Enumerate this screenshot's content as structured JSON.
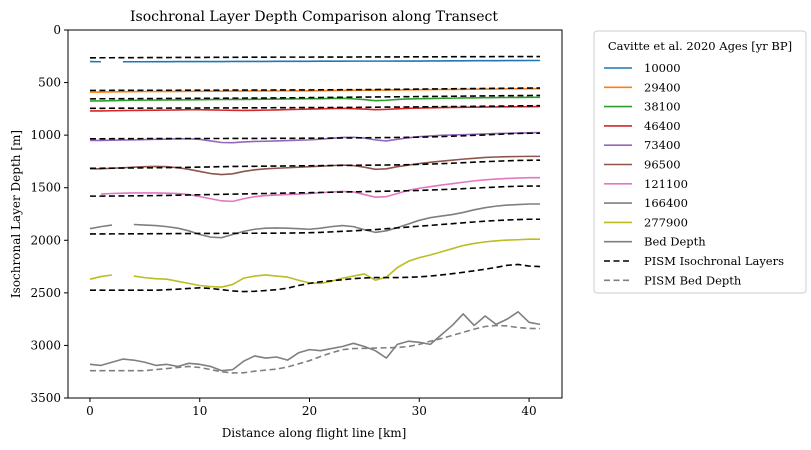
{
  "chart_data": {
    "type": "line",
    "title": "Isochronal Layer Depth Comparison along Transect",
    "xlabel": "Distance along flight line [km]",
    "ylabel": "Isochronal Layer Depth [m]",
    "xlim": [
      -2,
      43
    ],
    "ylim": [
      3500,
      0
    ],
    "y_inverted": true,
    "xticks": [
      0,
      10,
      20,
      30,
      40
    ],
    "yticks": [
      0,
      500,
      1000,
      1500,
      2000,
      2500,
      3000,
      3500
    ],
    "legend_title": "Cavitte et al. 2020 Ages [yr BP]",
    "legend_position": "outside-right",
    "x": [
      0,
      1,
      2,
      3,
      4,
      5,
      6,
      7,
      8,
      9,
      10,
      11,
      12,
      13,
      14,
      15,
      16,
      17,
      18,
      19,
      20,
      21,
      22,
      23,
      24,
      25,
      26,
      27,
      28,
      29,
      30,
      31,
      32,
      33,
      34,
      35,
      36,
      37,
      38,
      39,
      40,
      41
    ],
    "series": [
      {
        "name": "10000",
        "color": "#1f77b4",
        "style": "solid",
        "in_legend": true,
        "values": [
          300,
          302,
          null,
          302,
          302,
          302,
          301,
          301,
          300,
          300,
          300,
          300,
          300,
          299,
          299,
          299,
          299,
          298,
          298,
          298,
          298,
          297,
          297,
          297,
          296,
          296,
          296,
          296,
          295,
          295,
          295,
          294,
          294,
          293,
          293,
          292,
          292,
          292,
          291,
          291,
          290,
          290
        ]
      },
      {
        "name": "29400",
        "color": "#ff7f0e",
        "style": "solid",
        "in_legend": true,
        "values": [
          590,
          590,
          588,
          587,
          586,
          585,
          585,
          584,
          584,
          583,
          583,
          582,
          582,
          581,
          581,
          580,
          580,
          579,
          579,
          578,
          578,
          577,
          576,
          575,
          574,
          573,
          572,
          571,
          570,
          569,
          568,
          567,
          566,
          565,
          564,
          563,
          562,
          561,
          560,
          559,
          558,
          558
        ]
      },
      {
        "name": "38100",
        "color": "#2ca02c",
        "style": "solid",
        "in_legend": true,
        "values": [
          675,
          675,
          672,
          670,
          668,
          667,
          666,
          665,
          665,
          664,
          663,
          662,
          661,
          660,
          660,
          659,
          658,
          657,
          656,
          655,
          654,
          653,
          651,
          650,
          655,
          662,
          672,
          668,
          660,
          656,
          654,
          652,
          650,
          648,
          646,
          645,
          644,
          643,
          642,
          641,
          640,
          640
        ]
      },
      {
        "name": "46400",
        "color": "#d62728",
        "style": "solid",
        "in_legend": true,
        "values": [
          770,
          770,
          768,
          766,
          765,
          764,
          763,
          762,
          760,
          758,
          758,
          760,
          762,
          764,
          765,
          764,
          762,
          760,
          757,
          755,
          752,
          750,
          747,
          745,
          748,
          752,
          758,
          755,
          750,
          745,
          742,
          740,
          738,
          736,
          735,
          734,
          733,
          732,
          731,
          730,
          729,
          728
        ]
      },
      {
        "name": "73400",
        "color": "#9467bd",
        "style": "solid",
        "in_legend": true,
        "values": [
          1050,
          1050,
          1048,
          1046,
          1045,
          1042,
          1040,
          1038,
          1035,
          1035,
          1040,
          1055,
          1070,
          1072,
          1065,
          1060,
          1058,
          1055,
          1052,
          1048,
          1045,
          1038,
          1030,
          1022,
          1020,
          1028,
          1045,
          1055,
          1040,
          1025,
          1015,
          1008,
          1002,
          998,
          995,
          992,
          988,
          985,
          982,
          980,
          978,
          975
        ]
      },
      {
        "name": "96500",
        "color": "#8c564b",
        "style": "solid",
        "in_legend": true,
        "values": [
          1320,
          1320,
          1315,
          1310,
          1305,
          1300,
          1298,
          1300,
          1310,
          1325,
          1345,
          1365,
          1375,
          1368,
          1345,
          1330,
          1320,
          1315,
          1310,
          1305,
          1300,
          1295,
          1290,
          1285,
          1290,
          1305,
          1325,
          1320,
          1300,
          1285,
          1270,
          1258,
          1248,
          1238,
          1228,
          1220,
          1212,
          1208,
          1205,
          1203,
          1202,
          1202
        ]
      },
      {
        "name": "121100",
        "color": "#e377c2",
        "style": "solid",
        "in_legend": true,
        "values": [
          null,
          1560,
          1555,
          1552,
          1550,
          1550,
          1550,
          1552,
          1555,
          1565,
          1585,
          1605,
          1625,
          1630,
          1605,
          1585,
          1575,
          1570,
          1565,
          1560,
          1555,
          1548,
          1540,
          1535,
          1540,
          1565,
          1590,
          1585,
          1555,
          1525,
          1505,
          1490,
          1475,
          1462,
          1448,
          1435,
          1425,
          1418,
          1412,
          1408,
          1405,
          1405
        ]
      },
      {
        "name": "166400",
        "color": "#7f7f7f",
        "style": "solid",
        "in_legend": true,
        "values": [
          1890,
          1870,
          1855,
          null,
          1850,
          1855,
          1860,
          1870,
          1885,
          1910,
          1945,
          1970,
          1975,
          1945,
          1915,
          1895,
          1885,
          1883,
          1885,
          1890,
          1895,
          1885,
          1870,
          1860,
          1870,
          1900,
          1925,
          1910,
          1880,
          1845,
          1810,
          1785,
          1770,
          1755,
          1735,
          1710,
          1690,
          1675,
          1665,
          1660,
          1655,
          1655
        ]
      },
      {
        "name": "277900",
        "color": "#bcbd22",
        "style": "solid",
        "in_legend": true,
        "values": [
          2370,
          2345,
          2330,
          null,
          2340,
          2355,
          2365,
          2370,
          2390,
          2410,
          2430,
          2440,
          2445,
          2420,
          2360,
          2340,
          2330,
          2340,
          2350,
          2380,
          2405,
          2410,
          2390,
          2360,
          2340,
          2320,
          2380,
          2350,
          2260,
          2200,
          2165,
          2140,
          2110,
          2080,
          2050,
          2030,
          2015,
          2005,
          1998,
          1995,
          1990,
          1990
        ]
      },
      {
        "name": "Bed Depth",
        "color": "#7f7f7f",
        "style": "solid",
        "in_legend": true,
        "values": [
          3180,
          3190,
          3160,
          3130,
          3140,
          3160,
          3190,
          3180,
          3200,
          3170,
          3180,
          3200,
          3240,
          3230,
          3150,
          3100,
          3120,
          3110,
          3140,
          3070,
          3040,
          3050,
          3030,
          3010,
          2980,
          3010,
          3050,
          3120,
          2990,
          2960,
          2970,
          2990,
          2900,
          2810,
          2700,
          2810,
          2720,
          2800,
          2750,
          2680,
          2780,
          2800
        ]
      },
      {
        "name": "PISM Isochronal Layers",
        "color": "#000000",
        "style": "dashed",
        "in_legend": true,
        "values": [
          265,
          264,
          264,
          263,
          263,
          262,
          262,
          262,
          261,
          261,
          261,
          260,
          260,
          260,
          259,
          259,
          259,
          258,
          258,
          258,
          258,
          257,
          257,
          257,
          257,
          256,
          256,
          256,
          256,
          255,
          255,
          255,
          255,
          254,
          254,
          254,
          254,
          253,
          253,
          253,
          253,
          253
        ]
      },
      {
        "name": "PISM Isochronal Layers",
        "color": "#000000",
        "style": "dashed",
        "in_legend": false,
        "values": [
          575,
          575,
          574,
          574,
          574,
          573,
          573,
          573,
          573,
          572,
          572,
          572,
          572,
          571,
          571,
          571,
          571,
          570,
          570,
          570,
          570,
          569,
          569,
          568,
          568,
          567,
          566,
          565,
          564,
          563,
          562,
          561,
          560,
          559,
          558,
          557,
          556,
          555,
          554,
          553,
          552,
          552
        ]
      },
      {
        "name": "PISM Isochronal Layers",
        "color": "#000000",
        "style": "dashed",
        "in_legend": false,
        "values": [
          655,
          654,
          654,
          653,
          653,
          652,
          652,
          651,
          651,
          650,
          650,
          649,
          649,
          648,
          648,
          647,
          647,
          646,
          645,
          644,
          643,
          642,
          641,
          640,
          639,
          638,
          637,
          636,
          635,
          634,
          633,
          632,
          631,
          630,
          629,
          628,
          627,
          626,
          625,
          624,
          623,
          622
        ]
      },
      {
        "name": "PISM Isochronal Layers",
        "color": "#000000",
        "style": "dashed",
        "in_legend": false,
        "values": [
          745,
          745,
          744,
          744,
          744,
          743,
          743,
          743,
          742,
          742,
          742,
          741,
          741,
          741,
          740,
          740,
          740,
          739,
          739,
          738,
          738,
          737,
          737,
          736,
          736,
          735,
          734,
          733,
          733,
          732,
          731,
          730,
          729,
          728,
          727,
          726,
          725,
          724,
          723,
          722,
          721,
          720
        ]
      },
      {
        "name": "PISM Isochronal Layers",
        "color": "#000000",
        "style": "dashed",
        "in_legend": false,
        "values": [
          1035,
          1035,
          1034,
          1034,
          1034,
          1033,
          1033,
          1033,
          1033,
          1032,
          1032,
          1032,
          1032,
          1031,
          1031,
          1031,
          1031,
          1030,
          1030,
          1030,
          1029,
          1029,
          1028,
          1027,
          1026,
          1025,
          1024,
          1023,
          1022,
          1021,
          1019,
          1017,
          1014,
          1010,
          1006,
          1002,
          998,
          993,
          988,
          984,
          982,
          982
        ]
      },
      {
        "name": "PISM Isochronal Layers",
        "color": "#000000",
        "style": "dashed",
        "in_legend": false,
        "values": [
          1315,
          1315,
          1314,
          1313,
          1312,
          1311,
          1310,
          1309,
          1308,
          1306,
          1304,
          1302,
          1300,
          1298,
          1297,
          1296,
          1295,
          1294,
          1293,
          1292,
          1291,
          1290,
          1289,
          1288,
          1287,
          1286,
          1285,
          1284,
          1283,
          1281,
          1278,
          1275,
          1271,
          1267,
          1262,
          1257,
          1252,
          1248,
          1244,
          1241,
          1239,
          1238
        ]
      },
      {
        "name": "PISM Isochronal Layers",
        "color": "#000000",
        "style": "dashed",
        "in_legend": false,
        "values": [
          1580,
          1580,
          1579,
          1578,
          1577,
          1576,
          1575,
          1573,
          1571,
          1569,
          1567,
          1565,
          1563,
          1561,
          1559,
          1557,
          1555,
          1553,
          1551,
          1549,
          1547,
          1545,
          1543,
          1541,
          1539,
          1537,
          1535,
          1533,
          1531,
          1529,
          1526,
          1522,
          1518,
          1514,
          1509,
          1504,
          1499,
          1494,
          1489,
          1486,
          1484,
          1484
        ]
      },
      {
        "name": "PISM Isochronal Layers",
        "color": "#000000",
        "style": "dashed",
        "in_legend": false,
        "values": [
          1940,
          1940,
          1939,
          1939,
          1938,
          1938,
          1937,
          1937,
          1936,
          1936,
          1935,
          1935,
          1934,
          1934,
          1933,
          1933,
          1932,
          1932,
          1931,
          1930,
          1928,
          1925,
          1920,
          1915,
          1910,
          1904,
          1898,
          1890,
          1882,
          1874,
          1866,
          1858,
          1850,
          1842,
          1834,
          1826,
          1818,
          1812,
          1807,
          1803,
          1800,
          1800
        ]
      },
      {
        "name": "PISM Isochronal Layers",
        "color": "#000000",
        "style": "dashed",
        "in_legend": false,
        "values": [
          2475,
          2475,
          2475,
          2475,
          2475,
          2475,
          2475,
          2470,
          2465,
          2458,
          2452,
          2458,
          2470,
          2482,
          2488,
          2485,
          2478,
          2470,
          2455,
          2430,
          2410,
          2395,
          2385,
          2375,
          2365,
          2358,
          2355,
          2355,
          2355,
          2352,
          2348,
          2340,
          2330,
          2318,
          2305,
          2290,
          2275,
          2258,
          2238,
          2230,
          2245,
          2250
        ]
      },
      {
        "name": "PISM Bed Depth",
        "color": "#7f7f7f",
        "style": "dashed",
        "in_legend": true,
        "values": [
          3240,
          3240,
          3240,
          3240,
          3240,
          3240,
          3230,
          3220,
          3210,
          3200,
          3210,
          3230,
          3250,
          3262,
          3260,
          3245,
          3235,
          3225,
          3205,
          3175,
          3145,
          3105,
          3070,
          3040,
          3030,
          3028,
          3025,
          3022,
          3020,
          3010,
          2990,
          2960,
          2935,
          2905,
          2875,
          2845,
          2820,
          2810,
          2815,
          2830,
          2838,
          2840
        ]
      }
    ]
  }
}
